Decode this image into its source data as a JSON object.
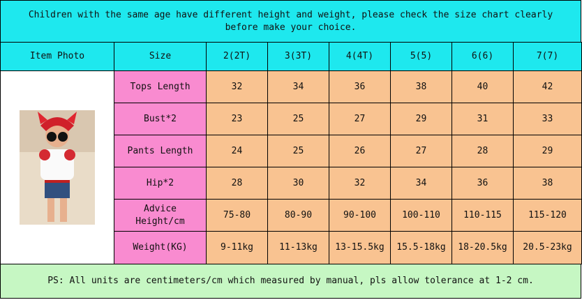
{
  "notice": "Children with the same age have different height and weight, please check the size chart clearly before make your choice.",
  "table": {
    "header": [
      "Item Photo",
      "Size",
      "2(2T)",
      "3(3T)",
      "4(4T)",
      "5(5)",
      "6(6)",
      "7(7)"
    ],
    "rows": [
      {
        "label": "Tops Length",
        "values": [
          32,
          34,
          36,
          38,
          40,
          42
        ]
      },
      {
        "label": "Bust*2",
        "values": [
          23,
          25,
          27,
          29,
          31,
          33
        ]
      },
      {
        "label": "Pants Length",
        "values": [
          24,
          25,
          26,
          27,
          28,
          29
        ]
      },
      {
        "label": "Hip*2",
        "values": [
          28,
          30,
          32,
          34,
          36,
          38
        ]
      },
      {
        "label": "Advice Height/cm",
        "values": [
          "75-80",
          "80-90",
          "90-100",
          "100-110",
          "110-115",
          "115-120"
        ]
      },
      {
        "label": "Weight(KG)",
        "values": [
          "9-11kg",
          "11-13kg",
          "13-15.5kg",
          "15.5-18kg",
          "18-20.5kg",
          "20.5-23kg"
        ]
      }
    ]
  },
  "footer": "PS: All units are centimeters/cm which measured by manual, pls allow tolerance at 1-2 cm."
}
